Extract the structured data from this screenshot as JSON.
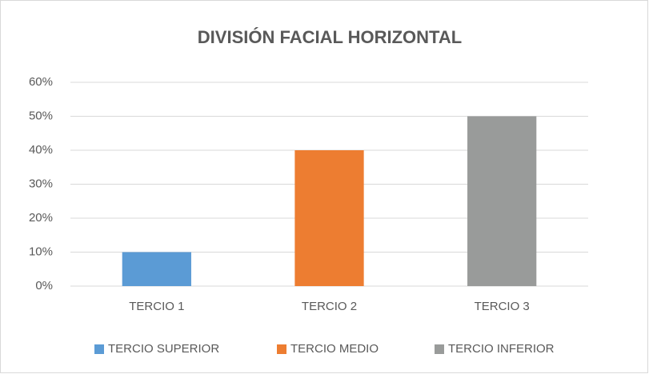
{
  "chart_data": {
    "type": "bar",
    "title": "DIVISIÓN FACIAL HORIZONTAL",
    "categories": [
      "TERCIO 1",
      "TERCIO 2",
      "TERCIO 3"
    ],
    "series": [
      {
        "name": "TERCIO SUPERIOR",
        "color": "#5b9bd5",
        "values": [
          10,
          null,
          null
        ]
      },
      {
        "name": "TERCIO MEDIO",
        "color": "#ed7d31",
        "values": [
          null,
          40,
          null
        ]
      },
      {
        "name": "TERCIO INFERIOR",
        "color": "#999b9a",
        "values": [
          null,
          null,
          50
        ]
      }
    ],
    "ylim": [
      0,
      60
    ],
    "yticks": [
      {
        "value": 0,
        "label": "0%"
      },
      {
        "value": 10,
        "label": "10%"
      },
      {
        "value": 20,
        "label": "20%"
      },
      {
        "value": 30,
        "label": "30%"
      },
      {
        "value": 40,
        "label": "40%"
      },
      {
        "value": 50,
        "label": "50%"
      },
      {
        "value": 60,
        "label": "60%"
      }
    ],
    "grid": true,
    "legend": "bottom"
  }
}
